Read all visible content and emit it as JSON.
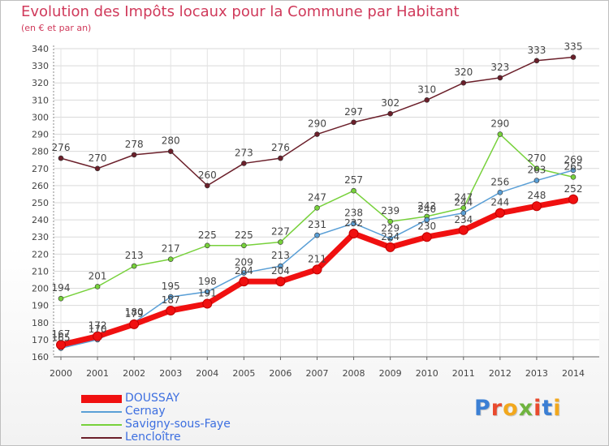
{
  "title": "Evolution des Impôts locaux pour la Commune par Habitant",
  "subtitle": "(en € et par an)",
  "logo": {
    "text": "Proxiti",
    "colors": [
      "#3b7fd4",
      "#e94a2e",
      "#f2a81d",
      "#6fb43f",
      "#e94a2e",
      "#3b7fd4",
      "#f2a81d"
    ]
  },
  "chart_data": {
    "type": "line",
    "x": [
      2000,
      2001,
      2002,
      2003,
      2004,
      2005,
      2006,
      2007,
      2008,
      2009,
      2010,
      2011,
      2012,
      2013,
      2014
    ],
    "ylim": [
      160,
      340
    ],
    "yticks": [
      160,
      170,
      180,
      190,
      200,
      210,
      220,
      230,
      240,
      250,
      260,
      270,
      280,
      290,
      300,
      310,
      320,
      330,
      340
    ],
    "grid": true,
    "legend_position": "bottom-left",
    "series": [
      {
        "name": "Lencloître",
        "color": "#6b1f2a",
        "values": [
          276,
          270,
          278,
          280,
          260,
          273,
          276,
          290,
          297,
          302,
          310,
          320,
          323,
          333,
          335
        ]
      },
      {
        "name": "Savigny-sous-Faye",
        "color": "#77d13b",
        "values": [
          194,
          201,
          213,
          217,
          225,
          225,
          227,
          247,
          257,
          239,
          242,
          247,
          290,
          270,
          265
        ]
      },
      {
        "name": "Cernay",
        "color": "#5a9fd6",
        "values": [
          165,
          170,
          180,
          195,
          198,
          209,
          213,
          231,
          238,
          229,
          240,
          244,
          256,
          263,
          269
        ]
      },
      {
        "name": "DOUSSAY",
        "color": "#f01010",
        "values": [
          167,
          172,
          179,
          187,
          191,
          204,
          204,
          211,
          232,
          224,
          230,
          234,
          244,
          248,
          252
        ]
      }
    ]
  }
}
